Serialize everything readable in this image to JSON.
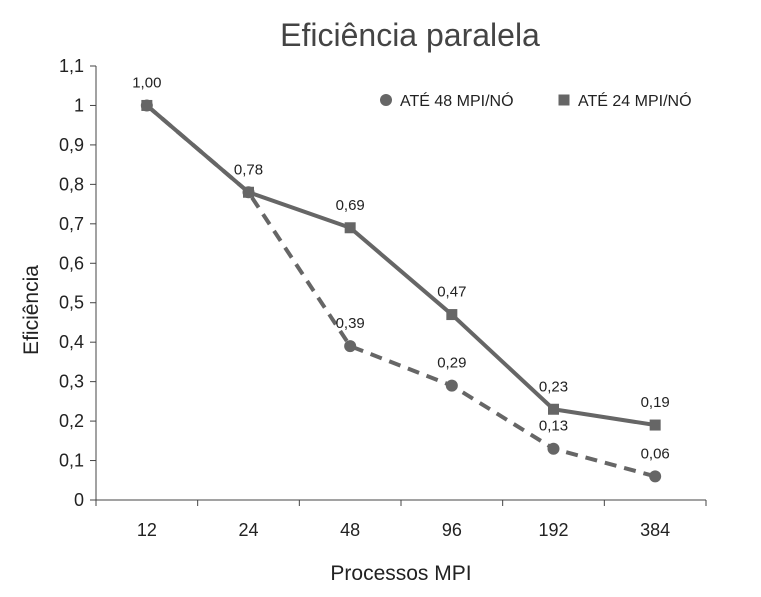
{
  "chart_data": {
    "type": "line",
    "title": "Eficiência paralela",
    "xlabel": "Processos MPI",
    "ylabel": "Eficiência",
    "categories": [
      "12",
      "24",
      "48",
      "96",
      "192",
      "384"
    ],
    "ylim": [
      0,
      1.1
    ],
    "yticks": [
      "0",
      "0,1",
      "0,2",
      "0,3",
      "0,4",
      "0,5",
      "0,6",
      "0,7",
      "0,8",
      "0,9",
      "1",
      "1,1"
    ],
    "grid": false,
    "legend_position": "top-right",
    "series": [
      {
        "name": "ATÉ 48 MPI/NÓ",
        "marker": "circle",
        "line_style": "dashed",
        "color": "#666666",
        "values": [
          1.0,
          0.78,
          0.39,
          0.29,
          0.13,
          0.06
        ],
        "labels": [
          "",
          "",
          "0,39",
          "0,29",
          "0,13",
          "0,06"
        ]
      },
      {
        "name": "ATÉ 24 MPI/NÓ",
        "marker": "square",
        "line_style": "solid",
        "color": "#666666",
        "values": [
          1.0,
          0.78,
          0.69,
          0.47,
          0.23,
          0.19
        ],
        "labels": [
          "1,00",
          "0,78",
          "0,69",
          "0,47",
          "0,23",
          "0,19"
        ]
      }
    ]
  }
}
